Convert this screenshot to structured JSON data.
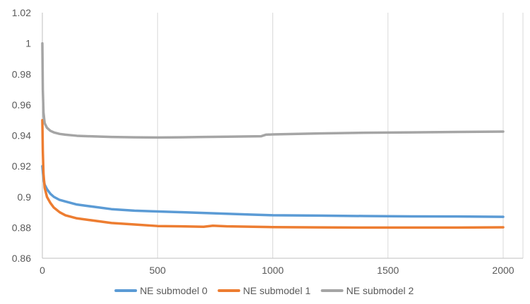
{
  "chart_data": {
    "type": "line",
    "title": "",
    "xlabel": "",
    "ylabel": "",
    "xlim": [
      0,
      2000
    ],
    "ylim": [
      0.86,
      1.02
    ],
    "x_ticks": [
      "0",
      "500",
      "1000",
      "1500",
      "2000"
    ],
    "y_ticks": [
      "0.86",
      "0.88",
      "0.9",
      "0.92",
      "0.94",
      "0.96",
      "0.98",
      "1",
      "1.02"
    ],
    "grid": "vertical",
    "legend_position": "bottom",
    "series": [
      {
        "name": "NE submodel 0",
        "color": "#5b9bd5",
        "points": [
          [
            0,
            0.92
          ],
          [
            3,
            0.915
          ],
          [
            6,
            0.911
          ],
          [
            10,
            0.908
          ],
          [
            20,
            0.905
          ],
          [
            35,
            0.902
          ],
          [
            50,
            0.9
          ],
          [
            75,
            0.898
          ],
          [
            100,
            0.897
          ],
          [
            150,
            0.895
          ],
          [
            200,
            0.894
          ],
          [
            300,
            0.892
          ],
          [
            400,
            0.891
          ],
          [
            500,
            0.8905
          ],
          [
            600,
            0.89
          ],
          [
            700,
            0.8895
          ],
          [
            800,
            0.889
          ],
          [
            900,
            0.8885
          ],
          [
            1000,
            0.888
          ],
          [
            1200,
            0.8878
          ],
          [
            1400,
            0.8875
          ],
          [
            1600,
            0.8873
          ],
          [
            1800,
            0.8872
          ],
          [
            2000,
            0.887
          ]
        ]
      },
      {
        "name": "NE submodel 1",
        "color": "#ed7d31",
        "points": [
          [
            0,
            0.95
          ],
          [
            2,
            0.93
          ],
          [
            5,
            0.915
          ],
          [
            10,
            0.906
          ],
          [
            20,
            0.9
          ],
          [
            35,
            0.896
          ],
          [
            50,
            0.893
          ],
          [
            75,
            0.89
          ],
          [
            100,
            0.888
          ],
          [
            150,
            0.886
          ],
          [
            200,
            0.885
          ],
          [
            300,
            0.883
          ],
          [
            400,
            0.882
          ],
          [
            500,
            0.881
          ],
          [
            600,
            0.8808
          ],
          [
            700,
            0.8805
          ],
          [
            740,
            0.8812
          ],
          [
            800,
            0.8808
          ],
          [
            1000,
            0.8803
          ],
          [
            1200,
            0.8801
          ],
          [
            1400,
            0.88
          ],
          [
            1600,
            0.88
          ],
          [
            1800,
            0.88
          ],
          [
            2000,
            0.8802
          ]
        ]
      },
      {
        "name": "NE submodel 2",
        "color": "#a5a5a5",
        "points": [
          [
            0,
            1.0
          ],
          [
            2,
            0.97
          ],
          [
            5,
            0.955
          ],
          [
            10,
            0.948
          ],
          [
            20,
            0.945
          ],
          [
            35,
            0.943
          ],
          [
            50,
            0.942
          ],
          [
            75,
            0.941
          ],
          [
            100,
            0.9405
          ],
          [
            150,
            0.9398
          ],
          [
            200,
            0.9395
          ],
          [
            300,
            0.939
          ],
          [
            400,
            0.9388
          ],
          [
            500,
            0.9387
          ],
          [
            600,
            0.9388
          ],
          [
            700,
            0.939
          ],
          [
            800,
            0.9392
          ],
          [
            950,
            0.9395
          ],
          [
            970,
            0.9405
          ],
          [
            1000,
            0.9407
          ],
          [
            1200,
            0.9413
          ],
          [
            1400,
            0.9418
          ],
          [
            1600,
            0.942
          ],
          [
            1800,
            0.9423
          ],
          [
            2000,
            0.9425
          ]
        ]
      }
    ]
  }
}
